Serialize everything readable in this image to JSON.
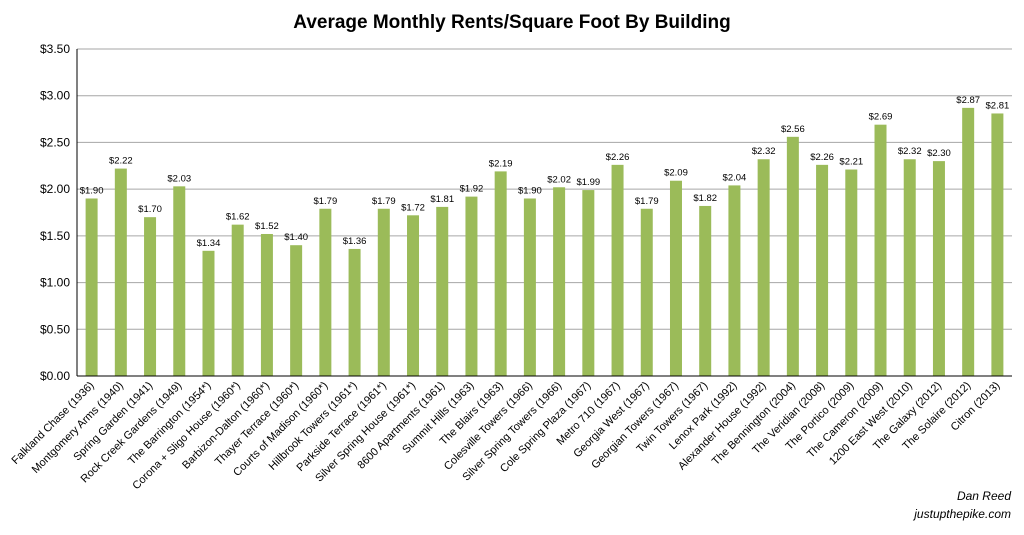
{
  "chart_data": {
    "type": "bar",
    "title": "Average Monthly Rents/Square Foot By Building",
    "xlabel": "",
    "ylabel": "",
    "ylim": [
      0,
      3.5
    ],
    "yticks": [
      "$0.00",
      "$0.50",
      "$1.00",
      "$1.50",
      "$2.00",
      "$2.50",
      "$3.00",
      "$3.50"
    ],
    "grid": true,
    "bar_color": "#9bbb59",
    "categories": [
      "Falkland Chase (1936)",
      "Montgomery Arms (1940)",
      "Spring Garden (1941)",
      "Rock Creek Gardens (1949)",
      "The Barrington (1954*)",
      "Corona + Sligo House (1960*)",
      "Barbizon-Dalton (1960*)",
      "Thayer Terrace (1960*)",
      "Courts of Madison (1960*)",
      "Hillbrook Towers (1961*)",
      "Parkside Terrace (1961*)",
      "Silver Spring House (1961*)",
      "8600 Apartments (1961)",
      "Summit Hills (1963)",
      "The Blairs (1963)",
      "Colesville Towers (1966)",
      "Silver Spring Towers (1966)",
      "Cole Spring Plaza (1967)",
      "Metro 710 (1967)",
      "Georgia West (1967)",
      "Georgian Towers (1967)",
      "Twin Towers (1967)",
      "Lenox Park (1992)",
      "Alexander House (1992)",
      "The Bennington (2004)",
      "The Veridian (2008)",
      "The Portico (2009)",
      "The Cameron (2009)",
      "1200 East West (2010)",
      "The Galaxy (2012)",
      "The Solaire (2012)",
      "Citron (2013)"
    ],
    "values": [
      1.9,
      2.22,
      1.7,
      2.03,
      1.34,
      1.62,
      1.52,
      1.4,
      1.79,
      1.36,
      1.79,
      1.72,
      1.81,
      1.92,
      2.19,
      1.9,
      2.02,
      1.99,
      2.26,
      1.79,
      2.09,
      1.82,
      2.04,
      2.32,
      2.56,
      2.26,
      2.21,
      2.69,
      2.32,
      2.3,
      2.87,
      2.81
    ],
    "value_labels": [
      "$1.90",
      "$2.22",
      "$1.70",
      "$2.03",
      "$1.34",
      "$1.62",
      "$1.52",
      "$1.40",
      "$1.79",
      "$1.36",
      "$1.79",
      "$1.72",
      "$1.81",
      "$1.92",
      "$2.19",
      "$1.90",
      "$2.02",
      "$1.99",
      "$2.26",
      "$1.79",
      "$2.09",
      "$1.82",
      "$2.04",
      "$2.32",
      "$2.56",
      "$2.26",
      "$2.21",
      "$2.69",
      "$2.32",
      "$2.30",
      "$2.87",
      "$2.81"
    ]
  },
  "credit": {
    "author": "Dan Reed",
    "site": "justupthepike.com"
  }
}
